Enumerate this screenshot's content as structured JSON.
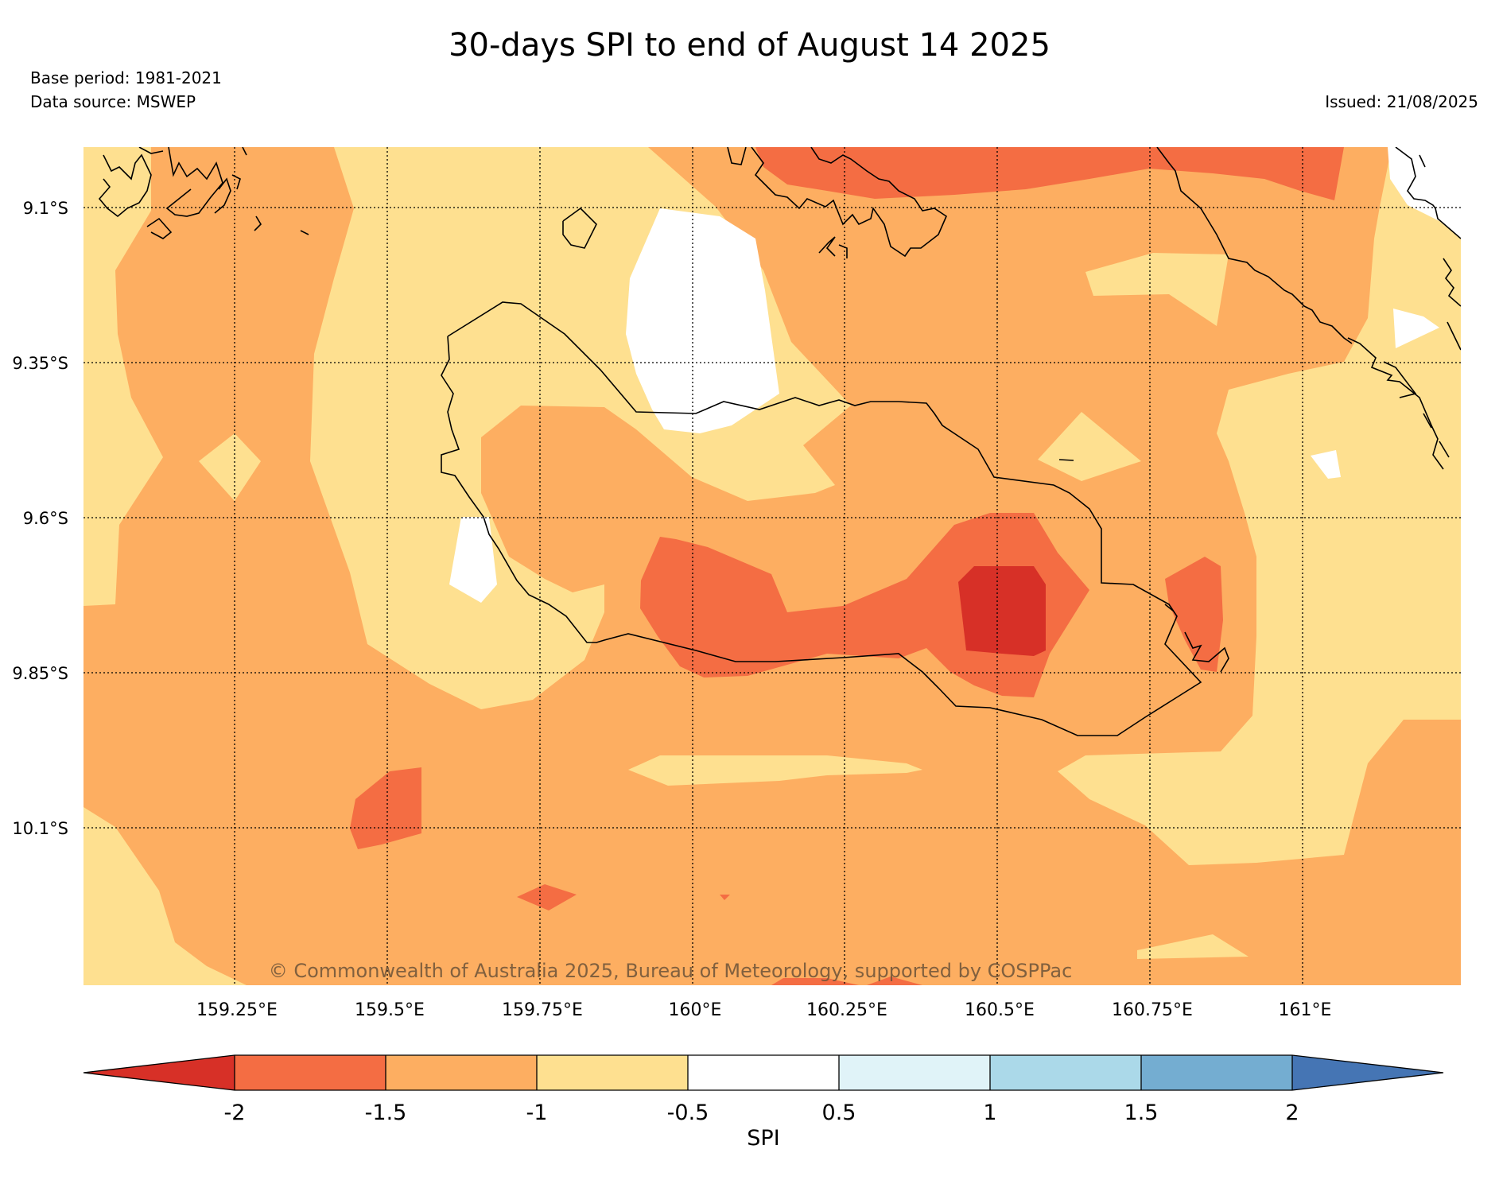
{
  "title": "30-days SPI to end of August 14 2025",
  "base_period": "Base period: 1981-2021",
  "data_source": "Data source: MSWEP",
  "issued": "Issued: 21/08/2025",
  "copyright": "© Commonwealth of Australia 2025, Bureau of Meteorology, supported by COSPPac",
  "lat_labels": [
    "9.1°S",
    "9.35°S",
    "9.6°S",
    "9.85°S",
    "10.1°S"
  ],
  "lon_labels": [
    "159.25°E",
    "159.5°E",
    "159.75°E",
    "160°E",
    "160.25°E",
    "160.5°E",
    "160.75°E",
    "161°E"
  ],
  "colorbar": {
    "label": "SPI",
    "ticks": [
      "-2",
      "-1.5",
      "-1",
      "-0.5",
      "0.5",
      "1",
      "1.5",
      "2"
    ],
    "colors": {
      "lt_m2": "#d73027",
      "m2_m15": "#f46d43",
      "m15_m1": "#fdae61",
      "m1_m05": "#fee090",
      "m05_05": "#ffffff",
      "05_1": "#e0f3f8",
      "1_15": "#abd9e9",
      "15_2": "#74add1",
      "gt_2": "#4575b4"
    }
  }
}
